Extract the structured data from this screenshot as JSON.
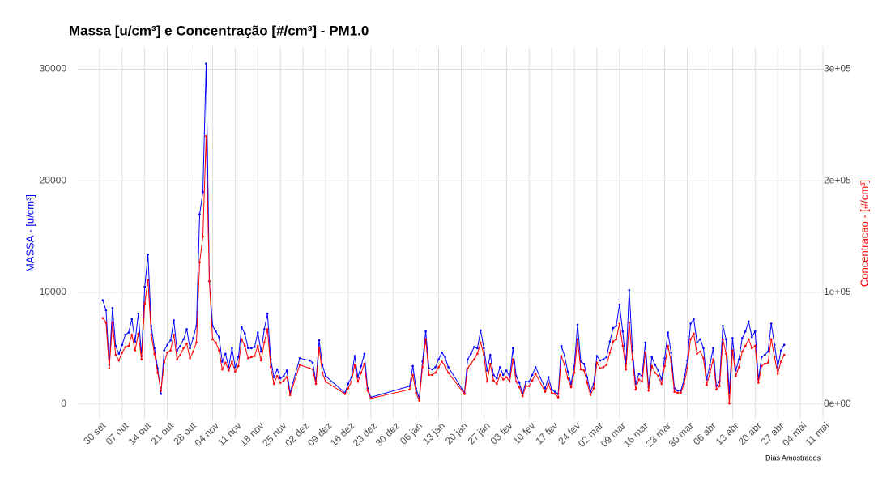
{
  "chart_data": {
    "type": "line",
    "title": "Massa [u/cm³] e Concentração [#/cm³] - PM1.0",
    "x_label": "Dias Amostrados",
    "y_label": "MASSA - [u/cm³]",
    "y2_label": "Concentracao - [#/cm³]",
    "grid": true,
    "xlim": [
      -7,
      225
    ],
    "xticks": [
      {
        "value": 0,
        "label": "30 set"
      },
      {
        "value": 7,
        "label": "07 out"
      },
      {
        "value": 14,
        "label": "14 out"
      },
      {
        "value": 21,
        "label": "21 out"
      },
      {
        "value": 28,
        "label": "28 out"
      },
      {
        "value": 35,
        "label": "04 nov"
      },
      {
        "value": 42,
        "label": "11 nov"
      },
      {
        "value": 49,
        "label": "18 nov"
      },
      {
        "value": 56,
        "label": "25 nov"
      },
      {
        "value": 63,
        "label": "02 dez"
      },
      {
        "value": 70,
        "label": "09 dez"
      },
      {
        "value": 77,
        "label": "16 dez"
      },
      {
        "value": 84,
        "label": "23 dez"
      },
      {
        "value": 91,
        "label": "30 dez"
      },
      {
        "value": 98,
        "label": "06 jan"
      },
      {
        "value": 105,
        "label": "13 jan"
      },
      {
        "value": 112,
        "label": "20 jan"
      },
      {
        "value": 119,
        "label": "27 jan"
      },
      {
        "value": 126,
        "label": "03 fev"
      },
      {
        "value": 133,
        "label": "10 fev"
      },
      {
        "value": 140,
        "label": "17 fev"
      },
      {
        "value": 147,
        "label": "24 fev"
      },
      {
        "value": 154,
        "label": "02 mar"
      },
      {
        "value": 161,
        "label": "09 mar"
      },
      {
        "value": 168,
        "label": "16 mar"
      },
      {
        "value": 175,
        "label": "23 mar"
      },
      {
        "value": 182,
        "label": "30 mar"
      },
      {
        "value": 189,
        "label": "06 abr"
      },
      {
        "value": 196,
        "label": "13 abr"
      },
      {
        "value": 203,
        "label": "20 abr"
      },
      {
        "value": 210,
        "label": "27 abr"
      },
      {
        "value": 217,
        "label": "04 mai"
      },
      {
        "value": 224,
        "label": "11 mai"
      }
    ],
    "ylim": [
      -1400,
      32000
    ],
    "yticks": [
      0,
      10000,
      20000,
      30000
    ],
    "y2lim": [
      -14000,
      320000
    ],
    "y2ticks": [
      {
        "value": 0,
        "label": "0e+00"
      },
      {
        "value": 100000,
        "label": "1e+05"
      },
      {
        "value": 200000,
        "label": "2e+05"
      },
      {
        "value": 300000,
        "label": "3e+05"
      }
    ],
    "x": [
      1,
      2,
      3,
      4,
      5,
      6,
      7,
      8,
      9,
      10,
      11,
      12,
      13,
      14,
      15,
      16,
      17,
      18,
      19,
      20,
      21,
      22,
      23,
      24,
      25,
      26,
      27,
      28,
      29,
      30,
      31,
      32,
      33,
      34,
      35,
      36,
      37,
      38,
      39,
      40,
      41,
      42,
      43,
      44,
      45,
      46,
      47,
      48,
      49,
      50,
      51,
      52,
      53,
      54,
      55,
      56,
      57,
      58,
      59,
      62,
      65,
      66,
      67,
      68,
      69,
      70,
      76,
      77,
      78,
      79,
      80,
      81,
      82,
      83,
      84,
      96,
      97,
      98,
      99,
      100,
      101,
      102,
      103,
      104,
      105,
      106,
      107,
      108,
      113,
      114,
      115,
      116,
      117,
      118,
      119,
      120,
      121,
      122,
      123,
      124,
      125,
      126,
      127,
      128,
      129,
      130,
      131,
      132,
      133,
      134,
      135,
      138,
      139,
      140,
      141,
      142,
      143,
      144,
      145,
      146,
      147,
      148,
      149,
      150,
      151,
      152,
      153,
      154,
      155,
      156,
      157,
      158,
      159,
      160,
      161,
      162,
      163,
      164,
      165,
      166,
      167,
      168,
      169,
      170,
      171,
      172,
      173,
      174,
      175,
      176,
      177,
      178,
      179,
      180,
      181,
      182,
      183,
      184,
      185,
      186,
      187,
      188,
      189,
      190,
      191,
      192,
      193,
      194,
      195,
      196,
      197,
      198,
      199,
      200,
      201,
      202,
      203,
      204,
      205,
      206,
      207,
      208,
      209,
      210,
      211,
      212
    ],
    "series": [
      {
        "color": "#0000ff",
        "values": [
          9300,
          8400,
          3500,
          8600,
          5200,
          4500,
          5300,
          6200,
          6400,
          7600,
          5600,
          8100,
          4300,
          10500,
          13400,
          7000,
          5000,
          3200,
          900,
          4800,
          5300,
          5700,
          7500,
          4800,
          5200,
          5800,
          6700,
          5000,
          5900,
          7000,
          17000,
          19000,
          30500,
          11000,
          7000,
          6500,
          6000,
          3800,
          4500,
          3300,
          5000,
          3300,
          4200,
          6900,
          6300,
          5000,
          5000,
          5100,
          6400,
          4700,
          6700,
          8100,
          4000,
          2400,
          3100,
          2300,
          2500,
          3000,
          1000,
          4100,
          3900,
          3700,
          2000,
          5700,
          3500,
          2500,
          1000,
          1800,
          2400,
          4300,
          2400,
          3400,
          4500,
          1400,
          600,
          1600,
          3400,
          1400,
          500,
          3800,
          6500,
          3200,
          3100,
          3300,
          4000,
          4600,
          4200,
          3300,
          1000,
          4000,
          4500,
          5100,
          5000,
          6600,
          5000,
          3000,
          4400,
          2600,
          2300,
          3300,
          2600,
          3000,
          2400,
          5000,
          2500,
          1900,
          900,
          2000,
          2000,
          2600,
          3300,
          1400,
          2400,
          1300,
          1100,
          900,
          5200,
          4300,
          2900,
          1800,
          3400,
          7100,
          3800,
          3600,
          2400,
          1100,
          1800,
          4300,
          3900,
          4000,
          4200,
          5600,
          6800,
          7000,
          8900,
          6500,
          3600,
          10200,
          4800,
          1800,
          2700,
          2500,
          5500,
          1500,
          4200,
          3500,
          3000,
          2200,
          4100,
          6400,
          4600,
          1400,
          1200,
          1200,
          2200,
          3900,
          7200,
          7600,
          5500,
          5800,
          5000,
          2200,
          3500,
          5000,
          1600,
          2000,
          7000,
          5800,
          1000,
          5900,
          3000,
          4000,
          5900,
          6500,
          7400,
          6000,
          6500,
          2200,
          4200,
          4400,
          4700,
          7200,
          5300,
          3300,
          4800,
          5300
        ]
      },
      {
        "color": "#ff0000",
        "axis": "y2",
        "values": [
          77000,
          73000,
          32000,
          73000,
          44000,
          39000,
          46000,
          51000,
          52000,
          62000,
          48000,
          63000,
          40000,
          90000,
          111000,
          62000,
          45000,
          28000,
          12000,
          37000,
          46000,
          48000,
          62000,
          40000,
          44000,
          50000,
          54000,
          41000,
          47000,
          55000,
          127000,
          150000,
          240000,
          110000,
          58000,
          55000,
          48000,
          31000,
          37000,
          30000,
          38000,
          29000,
          34000,
          58000,
          52000,
          41000,
          42000,
          43000,
          52000,
          39000,
          55000,
          67000,
          33000,
          18000,
          25000,
          19000,
          21000,
          24000,
          8000,
          35000,
          32000,
          31000,
          18000,
          50000,
          28000,
          20000,
          9000,
          14000,
          20000,
          35000,
          20000,
          28000,
          36000,
          12000,
          5000,
          13000,
          26000,
          10000,
          3000,
          33000,
          58000,
          26000,
          26000,
          28000,
          33000,
          38000,
          34000,
          28000,
          9000,
          32000,
          36000,
          40000,
          45000,
          55000,
          44000,
          20000,
          36000,
          21000,
          18000,
          26000,
          22000,
          24000,
          20000,
          40000,
          20000,
          15000,
          7000,
          16000,
          16000,
          21000,
          27000,
          11000,
          18000,
          10000,
          9000,
          6000,
          43000,
          35000,
          23000,
          15000,
          28000,
          58000,
          31000,
          30000,
          19000,
          8000,
          14000,
          37000,
          32000,
          33000,
          35000,
          46000,
          56000,
          58000,
          72000,
          52000,
          31000,
          73000,
          40000,
          13000,
          22000,
          20000,
          46000,
          12000,
          34000,
          28000,
          25000,
          18000,
          34000,
          52000,
          38000,
          11000,
          10000,
          10000,
          18000,
          32000,
          58000,
          63000,
          45000,
          47000,
          41000,
          17000,
          28000,
          40000,
          13000,
          16000,
          58000,
          45000,
          500,
          48000,
          25000,
          33000,
          47000,
          52000,
          58000,
          50000,
          52000,
          19000,
          34000,
          36000,
          37000,
          58000,
          42000,
          27000,
          38000,
          44000
        ]
      }
    ]
  }
}
